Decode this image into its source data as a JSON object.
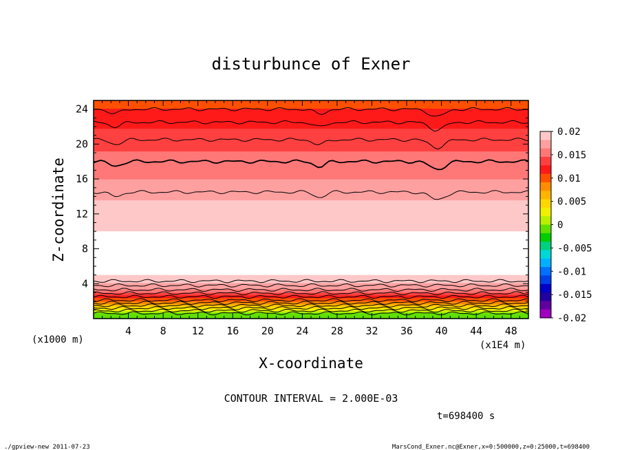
{
  "chart_data": {
    "type": "heatmap",
    "title": "disturbunce of Exner",
    "xlabel": "X-coordinate",
    "ylabel": "Z-coordinate",
    "x_unit": "(x1E4 m)",
    "y_unit": "(x1000 m)",
    "x_ticks": [
      4,
      8,
      12,
      16,
      20,
      24,
      28,
      32,
      36,
      40,
      44,
      48
    ],
    "y_ticks": [
      4,
      8,
      12,
      16,
      20,
      24
    ],
    "xlim": [
      0,
      50
    ],
    "ylim": [
      0,
      25
    ],
    "colorbar": {
      "labels": [
        "0.02",
        "0.015",
        "0.01",
        "0.005",
        "0",
        "-0.005",
        "-0.01",
        "-0.015",
        "-0.02"
      ],
      "values": [
        0.02,
        0.015,
        0.01,
        0.005,
        0,
        -0.005,
        -0.01,
        -0.015,
        -0.02
      ],
      "colors": [
        "#ffc8c8",
        "#ffa0a0",
        "#ff7878",
        "#ff4040",
        "#ff1a1a",
        "#ff5000",
        "#ff8c00",
        "#ffb400",
        "#ffd700",
        "#f0f000",
        "#b8f000",
        "#60e000",
        "#00cc00",
        "#00d080",
        "#00d8d8",
        "#00b0ff",
        "#0070ff",
        "#0040e8",
        "#0000c8",
        "#2000a0",
        "#6000a0",
        "#a000c0"
      ]
    },
    "profile": [
      {
        "z": 0.0,
        "v": -0.002
      },
      {
        "z": 0.6,
        "v": 0.0
      },
      {
        "z": 1.2,
        "v": 0.004
      },
      {
        "z": 1.8,
        "v": 0.008
      },
      {
        "z": 2.5,
        "v": 0.012
      },
      {
        "z": 3.2,
        "v": 0.016
      },
      {
        "z": 4.0,
        "v": 0.018
      },
      {
        "z": 4.8,
        "v": 0.02
      },
      {
        "z": 10.0,
        "v": 0.02
      },
      {
        "z": 12.5,
        "v": 0.019
      },
      {
        "z": 15.0,
        "v": 0.017
      },
      {
        "z": 18.0,
        "v": 0.015
      },
      {
        "z": 20.5,
        "v": 0.014
      },
      {
        "z": 22.5,
        "v": 0.012
      },
      {
        "z": 24.0,
        "v": 0.011
      },
      {
        "z": 25.0,
        "v": 0.01
      }
    ],
    "contour_interval_label": "CONTOUR INTERVAL = 2.000E-03",
    "time_label": "t=698400 s"
  },
  "footer": {
    "left": "./gpview-new   2011-07-23",
    "right": "MarsCond_Exner.nc@Exner,x=0:500000,z=0:25000,t=698400"
  }
}
